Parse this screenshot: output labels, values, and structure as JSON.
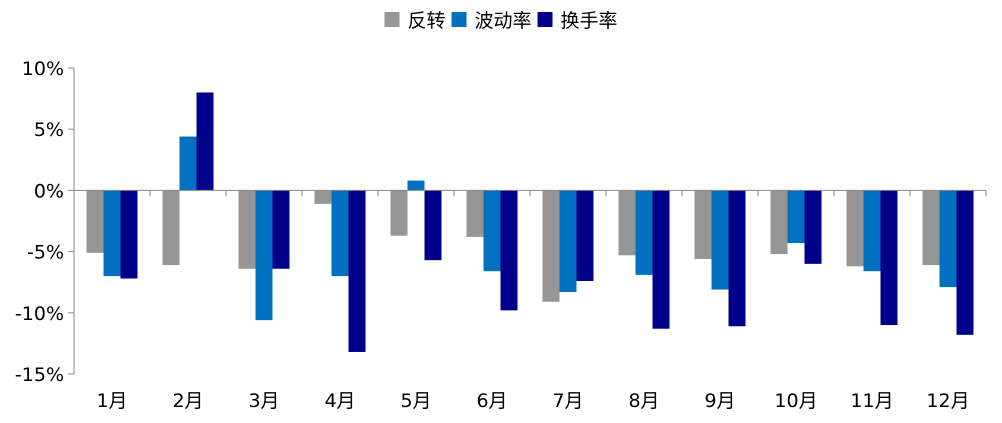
{
  "chart_data": {
    "type": "bar",
    "categories": [
      "1月",
      "2月",
      "3月",
      "4月",
      "5月",
      "6月",
      "7月",
      "8月",
      "9月",
      "10月",
      "11月",
      "12月"
    ],
    "series": [
      {
        "name": "反转",
        "color": "#969696",
        "values": [
          -5.1,
          -6.1,
          -6.4,
          -1.1,
          -3.7,
          -3.8,
          -9.1,
          -5.3,
          -5.6,
          -5.2,
          -6.2,
          -6.1
        ]
      },
      {
        "name": "波动率",
        "color": "#0070c0",
        "values": [
          -7.0,
          4.4,
          -10.6,
          -7.0,
          0.8,
          -6.6,
          -8.3,
          -6.9,
          -8.1,
          -4.3,
          -6.6,
          -7.9
        ]
      },
      {
        "name": "换手率",
        "color": "#00008b",
        "values": [
          -7.2,
          8.0,
          -6.4,
          -13.2,
          -5.7,
          -9.8,
          -7.4,
          -11.3,
          -11.1,
          -6.0,
          -11.0,
          -11.8
        ]
      }
    ],
    "ylim": [
      -15,
      10
    ],
    "yticks": [
      "10%",
      "5%",
      "0%",
      "-5%",
      "-10%",
      "-15%"
    ],
    "ytick_values": [
      10,
      5,
      0,
      -5,
      -10,
      -15
    ],
    "legend_position": "top-center",
    "grid": false
  }
}
